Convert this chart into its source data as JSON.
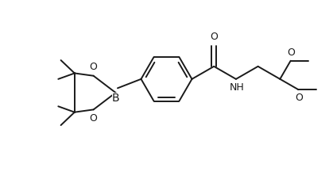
{
  "bg_color": "#ffffff",
  "line_color": "#1a1a1a",
  "line_width": 1.4,
  "font_size": 8.5,
  "figsize": [
    4.19,
    2.21
  ],
  "dpi": 100,
  "xlim": [
    0,
    10
  ],
  "ylim": [
    0,
    5.28
  ]
}
